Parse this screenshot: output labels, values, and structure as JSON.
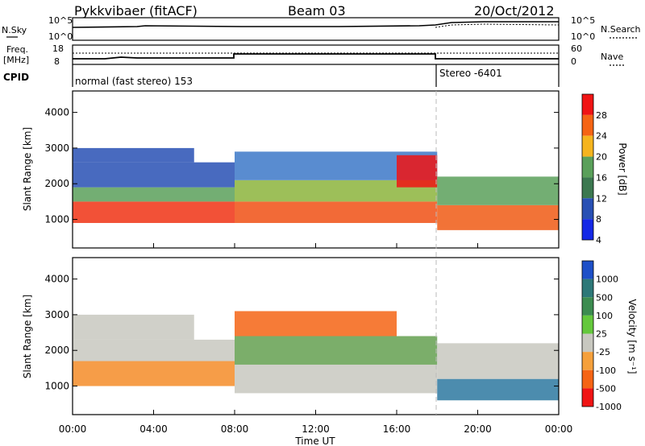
{
  "header": {
    "station": "Pykkvibaer (fitACF)",
    "beam": "Beam 03",
    "date": "20/Oct/2012"
  },
  "top_panels": {
    "nsky_label": "N.Sky",
    "nsky_ticks": [
      "10^5",
      "10^0"
    ],
    "nsearch_label": "N.Search",
    "nsearch_ticks": [
      "10^5",
      "10^0"
    ],
    "freq_label": "Freq.",
    "freq_unit": "[MHz]",
    "freq_ticks": [
      "18",
      "8"
    ],
    "nave_label": "Nave",
    "nave_ticks": [
      "60",
      "0"
    ],
    "cpid_label": "CPID",
    "cpid_segments": [
      "normal (fast stereo) 153",
      "Stereo -6401"
    ]
  },
  "chart_data": [
    {
      "type": "heatmap",
      "name": "power",
      "ylabel": "Slant Range [km]",
      "yticks": [
        "1000",
        "2000",
        "3000",
        "4000"
      ],
      "ylim": [
        200,
        4600
      ],
      "xlim": [
        0,
        24
      ],
      "colorbar_label": "Power [dB]",
      "colorbar_ticks": [
        "4",
        "8",
        "12",
        "16",
        "20",
        "24",
        "28"
      ],
      "colors": [
        "#1428e6",
        "#2850b4",
        "#3c7850",
        "#5aa05a",
        "#f5b41e",
        "#f56414",
        "#f01414"
      ],
      "bands": [
        {
          "t0": 0.0,
          "t1": 8.0,
          "r0": 900,
          "r1": 1500,
          "color": "#f03214"
        },
        {
          "t0": 0.0,
          "t1": 8.0,
          "r0": 1500,
          "r1": 1900,
          "color": "#5aa05a"
        },
        {
          "t0": 0.0,
          "t1": 8.0,
          "r0": 1900,
          "r1": 2600,
          "color": "#2850b4"
        },
        {
          "t0": 0.0,
          "t1": 6.0,
          "r0": 2600,
          "r1": 3000,
          "color": "#2850b4"
        },
        {
          "t0": 8.0,
          "t1": 18.0,
          "r0": 900,
          "r1": 1500,
          "color": "#f05014"
        },
        {
          "t0": 8.0,
          "t1": 18.0,
          "r0": 1500,
          "r1": 2100,
          "color": "#8cb43c"
        },
        {
          "t0": 8.0,
          "t1": 18.0,
          "r0": 2100,
          "r1": 2900,
          "color": "#3c78c8"
        },
        {
          "t0": 16.0,
          "t1": 18.0,
          "r0": 1900,
          "r1": 2800,
          "color": "#f01414"
        },
        {
          "t0": 18.0,
          "t1": 24.0,
          "r0": 700,
          "r1": 1400,
          "color": "#f05a14"
        },
        {
          "t0": 18.0,
          "t1": 24.0,
          "r0": 1400,
          "r1": 2200,
          "color": "#5aa05a"
        }
      ]
    },
    {
      "type": "heatmap",
      "name": "velocity",
      "ylabel": "Slant Range [km]",
      "yticks": [
        "1000",
        "2000",
        "3000",
        "4000"
      ],
      "ylim": [
        200,
        4600
      ],
      "xlim": [
        0,
        24
      ],
      "xticks": [
        "00:00",
        "04:00",
        "08:00",
        "12:00",
        "16:00",
        "20:00",
        "00:00"
      ],
      "xlabel": "Time UT",
      "colorbar_label": "Velocity [m s⁻¹]",
      "colorbar_ticks": [
        "1000",
        "500",
        "100",
        "25",
        "-25",
        "-100",
        "-500",
        "-1000"
      ],
      "colors": [
        "#1e50c8",
        "#2d7878",
        "#3c8c50",
        "#64c83c",
        "#c8c8c0",
        "#f5a03c",
        "#f56414",
        "#f01414"
      ],
      "bands": [
        {
          "t0": 0.0,
          "t1": 8.0,
          "r0": 1000,
          "r1": 1700,
          "color": "#f58c28"
        },
        {
          "t0": 0.0,
          "t1": 8.0,
          "r0": 1700,
          "r1": 2300,
          "color": "#c8c8c0"
        },
        {
          "t0": 0.0,
          "t1": 6.0,
          "r0": 2300,
          "r1": 3000,
          "color": "#c8c8c0"
        },
        {
          "t0": 8.0,
          "t1": 18.0,
          "r0": 800,
          "r1": 1600,
          "color": "#c8c8c0"
        },
        {
          "t0": 8.0,
          "t1": 18.0,
          "r0": 1600,
          "r1": 2400,
          "color": "#64a050"
        },
        {
          "t0": 8.0,
          "t1": 16.0,
          "r0": 2400,
          "r1": 3100,
          "color": "#f56414"
        },
        {
          "t0": 18.0,
          "t1": 24.0,
          "r0": 600,
          "r1": 1200,
          "color": "#2d78a0"
        },
        {
          "t0": 18.0,
          "t1": 24.0,
          "r0": 1200,
          "r1": 2200,
          "color": "#c8c8c0"
        }
      ]
    }
  ]
}
